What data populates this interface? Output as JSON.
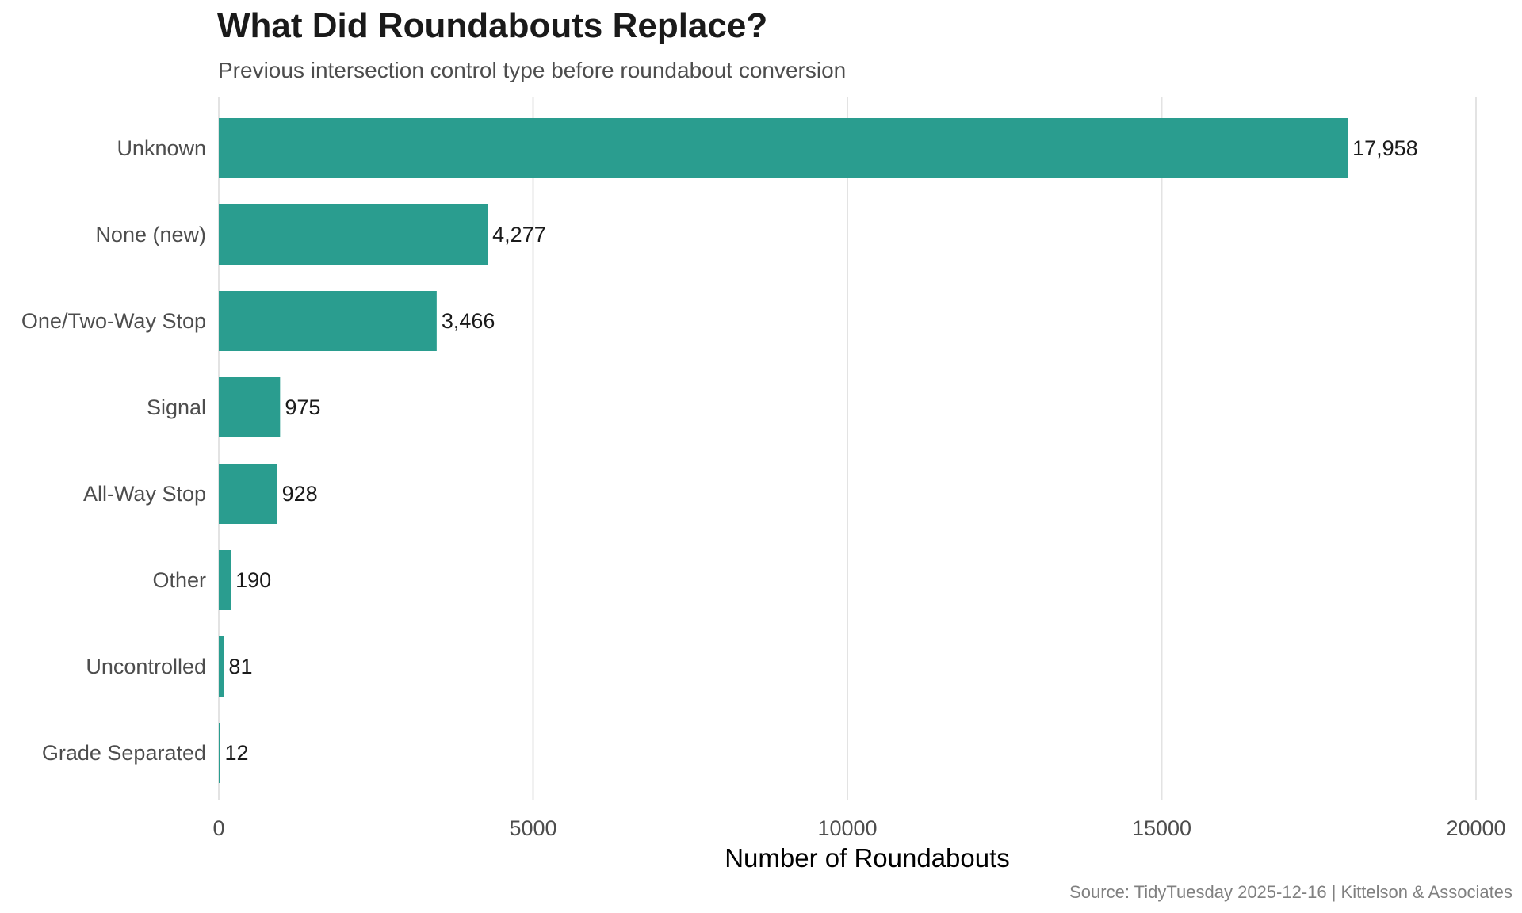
{
  "chart_data": {
    "type": "bar",
    "orientation": "horizontal",
    "title": "What Did Roundabouts Replace?",
    "subtitle": "Previous intersection control type before roundabout conversion",
    "xlabel": "Number of Roundabouts",
    "ylabel": "",
    "xlim": [
      0,
      20000
    ],
    "xticks": [
      "0",
      "5000",
      "10000",
      "15000",
      "20000"
    ],
    "categories": [
      "Unknown",
      "None (new)",
      "One/Two-Way Stop",
      "Signal",
      "All-Way Stop",
      "Other",
      "Uncontrolled",
      "Grade Separated"
    ],
    "values": [
      17958,
      4277,
      3466,
      975,
      928,
      190,
      81,
      12
    ],
    "value_labels": [
      "17,958",
      "4,277",
      "3,466",
      "975",
      "928",
      "190",
      "81",
      "12"
    ],
    "bar_color": "#2a9d8f",
    "grid": "vertical major gridlines",
    "legend": "none",
    "caption": "Source: TidyTuesday 2025-12-16 | Kittelson & Associates"
  }
}
